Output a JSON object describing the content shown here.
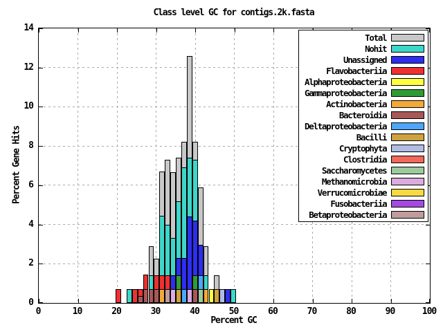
{
  "title": "Class level GC for contigs.2k.fasta",
  "x_axis": {
    "label": "Percent GC",
    "range": [
      0,
      100
    ],
    "ticks": [
      0,
      10,
      20,
      30,
      40,
      50,
      60,
      70,
      80,
      90,
      100
    ]
  },
  "y_axis": {
    "label": "Percent Gene Hits",
    "range": [
      0,
      14
    ],
    "ticks": [
      0,
      2,
      4,
      6,
      8,
      10,
      12,
      14
    ]
  },
  "legend": [
    {
      "label": "Total",
      "color": "#c8c8c8"
    },
    {
      "label": "Nohit",
      "color": "#3fd6c9"
    },
    {
      "label": "Unassigned",
      "color": "#2e2ef0"
    },
    {
      "label": "Flavobacteriia",
      "color": "#f03030"
    },
    {
      "label": "Alphaproteobacteria",
      "color": "#ffff40"
    },
    {
      "label": "Gammaproteobacteria",
      "color": "#2f9b37"
    },
    {
      "label": "Actinobacteria",
      "color": "#f2a93b"
    },
    {
      "label": "Bacteroidia",
      "color": "#a85858"
    },
    {
      "label": "Deltaproteobacteria",
      "color": "#4da6fa"
    },
    {
      "label": "Bacilli",
      "color": "#cfa23f"
    },
    {
      "label": "Cryptophyta",
      "color": "#b0bce4"
    },
    {
      "label": "Clostridia",
      "color": "#f0695a"
    },
    {
      "label": "Saccharomycetes",
      "color": "#9dca9d"
    },
    {
      "label": "Methanomicrobia",
      "color": "#dcabdf"
    },
    {
      "label": "Verrucomicrobiae",
      "color": "#f6d943"
    },
    {
      "label": "Fusobacteriia",
      "color": "#a54ae0"
    },
    {
      "label": "Betaproteobacteria",
      "color": "#c09c9c"
    }
  ],
  "chart_data": {
    "type": "bar",
    "style": "overlaid-histogram",
    "title": "Class level GC for contigs.2k.fasta",
    "xlabel": "Percent GC",
    "ylabel": "Percent Gene Hits",
    "xlim": [
      0,
      100
    ],
    "ylim": [
      0,
      14
    ],
    "grid": true,
    "legend_position": "top-right",
    "bin_width_gc": 1.4,
    "bins": [
      {
        "gc": 20.35,
        "layers": [
          {
            "class": "Flavobacteriia",
            "value": 0.7
          }
        ]
      },
      {
        "gc": 23.15,
        "layers": [
          {
            "class": "Nohit",
            "value": 0.7
          }
        ]
      },
      {
        "gc": 24.55,
        "layers": [
          {
            "class": "Flavobacteriia",
            "value": 0.7
          }
        ]
      },
      {
        "gc": 25.95,
        "layers": [
          {
            "class": "Flavobacteriia",
            "value": 0.7
          },
          {
            "class": "Bacteroidia",
            "value": 0.35
          }
        ]
      },
      {
        "gc": 27.35,
        "layers": [
          {
            "class": "Flavobacteriia",
            "value": 1.45
          },
          {
            "class": "Bacteroidia",
            "value": 0.7
          }
        ]
      },
      {
        "gc": 28.75,
        "layers": [
          {
            "class": "Total",
            "value": 2.9
          },
          {
            "class": "Nohit",
            "value": 1.4
          },
          {
            "class": "Bacteroidia",
            "value": 0.7
          }
        ]
      },
      {
        "gc": 30.15,
        "layers": [
          {
            "class": "Total",
            "value": 2.25
          },
          {
            "class": "Flavobacteriia",
            "value": 1.4
          },
          {
            "class": "Bacteroidia",
            "value": 0.7
          }
        ]
      },
      {
        "gc": 31.55,
        "layers": [
          {
            "class": "Total",
            "value": 6.7
          },
          {
            "class": "Nohit",
            "value": 4.45
          },
          {
            "class": "Flavobacteriia",
            "value": 1.4
          },
          {
            "class": "Actinobacteria",
            "value": 0.7
          }
        ]
      },
      {
        "gc": 32.95,
        "layers": [
          {
            "class": "Total",
            "value": 7.3
          },
          {
            "class": "Nohit",
            "value": 4.0
          },
          {
            "class": "Flavobacteriia",
            "value": 1.4
          },
          {
            "class": "Betaproteobacteria",
            "value": 0.7
          }
        ]
      },
      {
        "gc": 34.35,
        "layers": [
          {
            "class": "Total",
            "value": 6.65
          },
          {
            "class": "Nohit",
            "value": 3.3
          },
          {
            "class": "Unassigned",
            "value": 1.4
          },
          {
            "class": "Methanomicrobia",
            "value": 0.7
          }
        ]
      },
      {
        "gc": 35.75,
        "layers": [
          {
            "class": "Total",
            "value": 7.4
          },
          {
            "class": "Nohit",
            "value": 5.2
          },
          {
            "class": "Unassigned",
            "value": 2.3
          },
          {
            "class": "Gammaproteobacteria",
            "value": 1.4
          },
          {
            "class": "Bacilli",
            "value": 0.7
          }
        ]
      },
      {
        "gc": 37.15,
        "layers": [
          {
            "class": "Total",
            "value": 8.2
          },
          {
            "class": "Nohit",
            "value": 6.9
          },
          {
            "class": "Unassigned",
            "value": 2.3
          },
          {
            "class": "Deltaproteobacteria",
            "value": 0.7
          }
        ]
      },
      {
        "gc": 38.55,
        "layers": [
          {
            "class": "Total",
            "value": 12.6
          },
          {
            "class": "Nohit",
            "value": 7.4
          },
          {
            "class": "Unassigned",
            "value": 4.4
          },
          {
            "class": "Methanomicrobia",
            "value": 0.7
          }
        ]
      },
      {
        "gc": 39.95,
        "layers": [
          {
            "class": "Total",
            "value": 8.2
          },
          {
            "class": "Nohit",
            "value": 7.3
          },
          {
            "class": "Unassigned",
            "value": 4.2
          },
          {
            "class": "Gammaproteobacteria",
            "value": 1.4
          },
          {
            "class": "Bacteroidia",
            "value": 0.7
          }
        ]
      },
      {
        "gc": 41.35,
        "layers": [
          {
            "class": "Total",
            "value": 5.9
          },
          {
            "class": "Unassigned",
            "value": 2.95
          },
          {
            "class": "Deltaproteobacteria",
            "value": 1.4
          },
          {
            "class": "Saccharomycetes",
            "value": 0.7
          }
        ]
      },
      {
        "gc": 42.75,
        "layers": [
          {
            "class": "Total",
            "value": 2.9
          },
          {
            "class": "Nohit",
            "value": 1.4
          },
          {
            "class": "Actinobacteria",
            "value": 0.7
          }
        ]
      },
      {
        "gc": 44.15,
        "layers": [
          {
            "class": "Alphaproteobacteria",
            "value": 0.7
          }
        ]
      },
      {
        "gc": 45.55,
        "layers": [
          {
            "class": "Total",
            "value": 1.4
          },
          {
            "class": "Bacilli",
            "value": 0.7
          }
        ]
      },
      {
        "gc": 46.95,
        "layers": [
          {
            "class": "Cryptophyta",
            "value": 0.7
          }
        ]
      },
      {
        "gc": 48.35,
        "layers": [
          {
            "class": "Unassigned",
            "value": 0.7
          }
        ]
      },
      {
        "gc": 49.75,
        "layers": [
          {
            "class": "Nohit",
            "value": 0.7
          }
        ]
      }
    ]
  }
}
